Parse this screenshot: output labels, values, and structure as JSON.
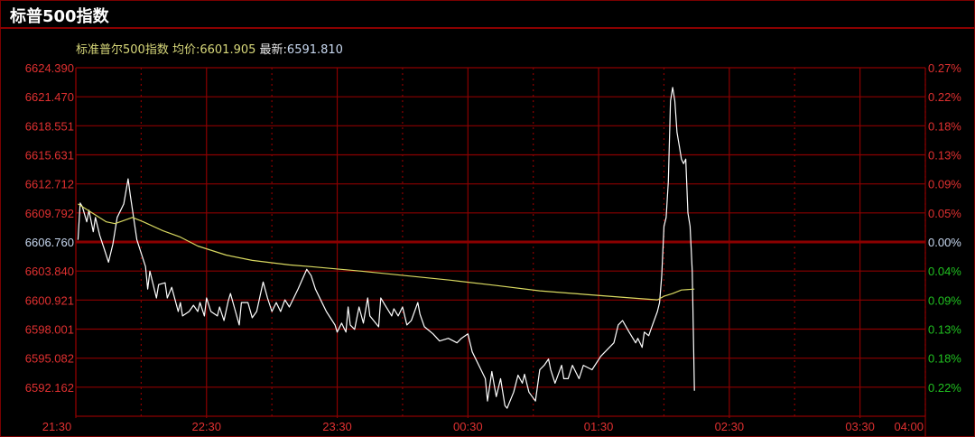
{
  "header": {
    "title": "标普500指数"
  },
  "info": {
    "name": "标准普尔500指数",
    "avg_label": "均价:",
    "avg_value": "6601.905",
    "last_label": "最新:",
    "last_value": "6591.810"
  },
  "colors": {
    "grid": "#8b0000",
    "price_line": "#ffffff",
    "avg_line": "#d8d860",
    "up": "#e03030",
    "down": "#20c020",
    "zero": "#c8d8f0"
  },
  "chart_data": {
    "type": "line",
    "x_start": "21:30",
    "x_end": "04:00",
    "x_ticks": [
      "21:30",
      "22:30",
      "23:30",
      "00:30",
      "01:30",
      "02:30",
      "03:30",
      "04:00"
    ],
    "y_ticks": [
      "6624.390",
      "6621.470",
      "6618.551",
      "6615.631",
      "6612.712",
      "6609.792",
      "6606.760",
      "6603.840",
      "6600.921",
      "6598.001",
      "6595.082",
      "6592.162"
    ],
    "pct_ticks": [
      "0.27%",
      "0.22%",
      "0.18%",
      "0.13%",
      "0.09%",
      "0.05%",
      "0.00%",
      "0.04%",
      "0.09%",
      "0.13%",
      "0.18%",
      "0.22%"
    ],
    "pct_signs": [
      "up",
      "up",
      "up",
      "up",
      "up",
      "up",
      "zero",
      "down",
      "down",
      "down",
      "down",
      "down"
    ],
    "prev_close": 6606.76,
    "ylim": [
      6589.24,
      6627.32
    ],
    "grid": true,
    "series": [
      {
        "key": "price",
        "points": [
          [
            "21:31",
            6607.03
          ],
          [
            "21:32",
            6610.74
          ],
          [
            "21:33",
            6610.38
          ],
          [
            "21:35",
            6608.84
          ],
          [
            "21:36",
            6610.01
          ],
          [
            "21:38",
            6607.84
          ],
          [
            "21:39",
            6609.29
          ],
          [
            "21:41",
            6607.48
          ],
          [
            "21:43",
            6606.13
          ],
          [
            "21:45",
            6604.77
          ],
          [
            "21:47",
            6606.58
          ],
          [
            "21:49",
            6609.29
          ],
          [
            "21:52",
            6610.65
          ],
          [
            "21:54",
            6613.18
          ],
          [
            "21:55",
            6611.55
          ],
          [
            "21:58",
            6607.03
          ],
          [
            "22:02",
            6604.32
          ],
          [
            "22:03",
            6602.06
          ],
          [
            "22:04",
            6603.87
          ],
          [
            "22:07",
            6601.16
          ],
          [
            "22:08",
            6602.51
          ],
          [
            "22:11",
            6602.69
          ],
          [
            "22:12",
            6601.16
          ],
          [
            "22:14",
            6602.24
          ],
          [
            "22:17",
            6599.8
          ],
          [
            "22:18",
            6600.7
          ],
          [
            "22:19",
            6599.35
          ],
          [
            "22:22",
            6599.8
          ],
          [
            "22:24",
            6600.43
          ],
          [
            "22:26",
            6599.8
          ],
          [
            "22:27",
            6600.7
          ],
          [
            "22:29",
            6599.35
          ],
          [
            "22:30",
            6601.16
          ],
          [
            "22:32",
            6599.8
          ],
          [
            "22:35",
            6599.35
          ],
          [
            "22:36",
            6600.25
          ],
          [
            "22:38",
            6598.89
          ],
          [
            "22:40",
            6600.88
          ],
          [
            "22:41",
            6601.61
          ],
          [
            "22:45",
            6598.44
          ],
          [
            "22:46",
            6600.7
          ],
          [
            "22:49",
            6600.7
          ],
          [
            "22:51",
            6599.17
          ],
          [
            "22:53",
            6599.8
          ],
          [
            "22:56",
            6602.78
          ],
          [
            "22:58",
            6601.16
          ],
          [
            "23:00",
            6599.8
          ],
          [
            "23:02",
            6600.7
          ],
          [
            "23:04",
            6599.8
          ],
          [
            "23:06",
            6600.97
          ],
          [
            "23:08",
            6600.25
          ],
          [
            "23:12",
            6602.06
          ],
          [
            "23:16",
            6604.05
          ],
          [
            "23:18",
            6603.42
          ],
          [
            "23:20",
            6602.06
          ],
          [
            "23:25",
            6599.8
          ],
          [
            "23:29",
            6598.44
          ],
          [
            "23:30",
            6597.72
          ],
          [
            "23:32",
            6598.62
          ],
          [
            "23:34",
            6597.72
          ],
          [
            "23:35",
            6600.25
          ],
          [
            "23:36",
            6598.44
          ],
          [
            "23:38",
            6597.99
          ],
          [
            "23:40",
            6600.25
          ],
          [
            "23:42",
            6598.62
          ],
          [
            "23:44",
            6601.16
          ],
          [
            "23:45",
            6599.35
          ],
          [
            "23:49",
            6598.26
          ],
          [
            "23:50",
            6601.16
          ],
          [
            "23:52",
            6600.43
          ],
          [
            "23:55",
            6599.35
          ],
          [
            "23:56",
            6600.07
          ],
          [
            "23:58",
            6599.35
          ],
          [
            "00:00",
            6600.25
          ],
          [
            "00:02",
            6598.44
          ],
          [
            "00:04",
            6598.89
          ],
          [
            "00:07",
            6600.7
          ],
          [
            "00:08",
            6599.53
          ],
          [
            "00:10",
            6598.26
          ],
          [
            "00:14",
            6597.54
          ],
          [
            "00:17",
            6596.82
          ],
          [
            "00:21",
            6597.09
          ],
          [
            "00:25",
            6596.64
          ],
          [
            "00:27",
            6597.09
          ],
          [
            "00:30",
            6597.54
          ],
          [
            "00:32",
            6595.73
          ],
          [
            "00:36",
            6593.92
          ],
          [
            "00:38",
            6593.02
          ],
          [
            "00:39",
            6590.76
          ],
          [
            "00:41",
            6593.74
          ],
          [
            "00:43",
            6591.21
          ],
          [
            "00:45",
            6593.02
          ],
          [
            "00:47",
            6590.31
          ],
          [
            "00:48",
            6590.04
          ],
          [
            "00:51",
            6591.66
          ],
          [
            "00:53",
            6593.38
          ],
          [
            "00:55",
            6592.57
          ],
          [
            "00:56",
            6593.47
          ],
          [
            "00:58",
            6591.66
          ],
          [
            "01:01",
            6590.76
          ],
          [
            "01:03",
            6593.92
          ],
          [
            "01:05",
            6594.37
          ],
          [
            "01:07",
            6595.01
          ],
          [
            "01:08",
            6593.92
          ],
          [
            "01:10",
            6592.57
          ],
          [
            "01:13",
            6594.37
          ],
          [
            "01:14",
            6593.02
          ],
          [
            "01:16",
            6593.02
          ],
          [
            "01:18",
            6594.37
          ],
          [
            "01:21",
            6593.02
          ],
          [
            "01:23",
            6594.37
          ],
          [
            "01:27",
            6593.92
          ],
          [
            "01:31",
            6595.28
          ],
          [
            "01:35",
            6596.18
          ],
          [
            "01:37",
            6596.64
          ],
          [
            "01:39",
            6598.44
          ],
          [
            "01:41",
            6598.89
          ],
          [
            "01:44",
            6597.72
          ],
          [
            "01:47",
            6596.64
          ],
          [
            "01:48",
            6597.09
          ],
          [
            "01:50",
            6596.18
          ],
          [
            "01:51",
            6597.72
          ],
          [
            "01:53",
            6597.36
          ],
          [
            "01:54",
            6597.99
          ],
          [
            "01:57",
            6599.8
          ],
          [
            "01:58",
            6600.7
          ],
          [
            "01:59",
            6603.42
          ],
          [
            "02:00",
            6608.39
          ],
          [
            "02:01",
            6609.29
          ],
          [
            "02:02",
            6612.91
          ],
          [
            "02:03",
            6621.04
          ],
          [
            "02:04",
            6622.4
          ],
          [
            "02:05",
            6621.04
          ],
          [
            "02:06",
            6617.88
          ],
          [
            "02:07",
            6616.52
          ],
          [
            "02:08",
            6615.17
          ],
          [
            "02:09",
            6614.72
          ],
          [
            "02:10",
            6615.17
          ],
          [
            "02:11",
            6609.74
          ],
          [
            "02:12",
            6608.39
          ],
          [
            "02:13",
            6603.87
          ],
          [
            "02:14",
            6591.81
          ]
        ]
      },
      {
        "key": "average",
        "points": [
          [
            "21:31",
            6610.65
          ],
          [
            "21:44",
            6608.84
          ],
          [
            "21:48",
            6608.66
          ],
          [
            "21:56",
            6609.29
          ],
          [
            "22:01",
            6608.84
          ],
          [
            "22:10",
            6607.94
          ],
          [
            "22:18",
            6607.3
          ],
          [
            "22:26",
            6606.4
          ],
          [
            "22:39",
            6605.49
          ],
          [
            "22:51",
            6604.95
          ],
          [
            "23:08",
            6604.5
          ],
          [
            "23:18",
            6604.32
          ],
          [
            "23:41",
            6603.87
          ],
          [
            "00:01",
            6603.42
          ],
          [
            "00:22",
            6602.96
          ],
          [
            "00:43",
            6602.42
          ],
          [
            "01:03",
            6601.88
          ],
          [
            "01:24",
            6601.52
          ],
          [
            "01:45",
            6601.16
          ],
          [
            "01:57",
            6600.97
          ],
          [
            "02:00",
            6601.34
          ],
          [
            "02:04",
            6601.61
          ],
          [
            "02:08",
            6601.97
          ],
          [
            "02:14",
            6602.06
          ]
        ]
      }
    ]
  }
}
